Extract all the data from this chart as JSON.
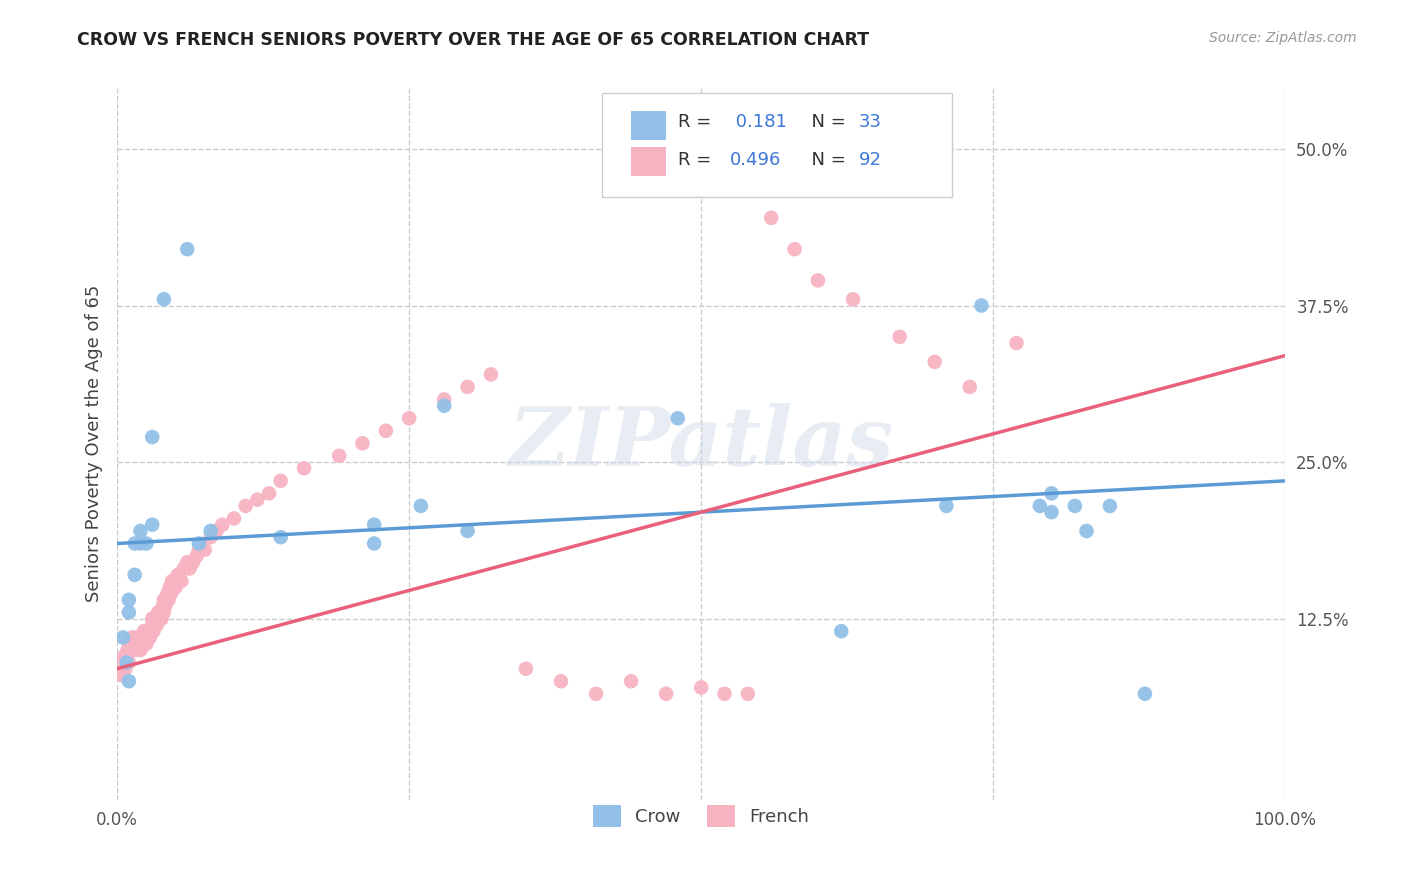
{
  "title": "CROW VS FRENCH SENIORS POVERTY OVER THE AGE OF 65 CORRELATION CHART",
  "source": "Source: ZipAtlas.com",
  "ylabel": "Seniors Poverty Over the Age of 65",
  "xlim": [
    0,
    1.0
  ],
  "ylim": [
    -0.02,
    0.55
  ],
  "xticks": [
    0.0,
    0.25,
    0.5,
    0.75,
    1.0
  ],
  "xticklabels": [
    "0.0%",
    "",
    "",
    "",
    "100.0%"
  ],
  "yticks": [
    0.125,
    0.25,
    0.375,
    0.5
  ],
  "yticklabels": [
    "12.5%",
    "25.0%",
    "37.5%",
    "50.0%"
  ],
  "crow_color": "#92c0e8",
  "french_color": "#f7b3c2",
  "crow_line_color": "#5b9bd5",
  "french_line_color": "#e8607a",
  "crow_R": 0.181,
  "crow_N": 33,
  "french_R": 0.496,
  "french_N": 92,
  "watermark_text": "ZIPatlas",
  "background_color": "#ffffff",
  "grid_color": "#cccccc",
  "legend_number_color": "#3c78d8",
  "crow_scatter_x": [
    0.005,
    0.008,
    0.01,
    0.01,
    0.01,
    0.015,
    0.015,
    0.02,
    0.02,
    0.025,
    0.03,
    0.03,
    0.04,
    0.06,
    0.07,
    0.08,
    0.14,
    0.22,
    0.22,
    0.26,
    0.28,
    0.3,
    0.48,
    0.62,
    0.71,
    0.74,
    0.79,
    0.8,
    0.8,
    0.82,
    0.83,
    0.85,
    0.88
  ],
  "crow_scatter_y": [
    0.11,
    0.09,
    0.14,
    0.13,
    0.075,
    0.16,
    0.185,
    0.195,
    0.185,
    0.185,
    0.2,
    0.27,
    0.38,
    0.42,
    0.185,
    0.195,
    0.19,
    0.2,
    0.185,
    0.215,
    0.295,
    0.195,
    0.285,
    0.115,
    0.215,
    0.375,
    0.215,
    0.225,
    0.21,
    0.215,
    0.195,
    0.215,
    0.065
  ],
  "french_scatter_x": [
    0.003,
    0.005,
    0.006,
    0.007,
    0.008,
    0.009,
    0.01,
    0.01,
    0.01,
    0.012,
    0.013,
    0.014,
    0.015,
    0.016,
    0.017,
    0.018,
    0.019,
    0.02,
    0.02,
    0.021,
    0.022,
    0.023,
    0.024,
    0.025,
    0.025,
    0.027,
    0.028,
    0.029,
    0.03,
    0.03,
    0.031,
    0.032,
    0.033,
    0.034,
    0.035,
    0.036,
    0.037,
    0.038,
    0.039,
    0.04,
    0.04,
    0.041,
    0.042,
    0.043,
    0.044,
    0.045,
    0.046,
    0.047,
    0.048,
    0.05,
    0.051,
    0.052,
    0.055,
    0.057,
    0.06,
    0.062,
    0.065,
    0.068,
    0.07,
    0.075,
    0.08,
    0.085,
    0.09,
    0.1,
    0.11,
    0.12,
    0.13,
    0.14,
    0.16,
    0.19,
    0.21,
    0.23,
    0.25,
    0.28,
    0.3,
    0.32,
    0.35,
    0.38,
    0.41,
    0.44,
    0.47,
    0.5,
    0.52,
    0.54,
    0.56,
    0.58,
    0.6,
    0.63,
    0.67,
    0.7,
    0.73,
    0.77
  ],
  "french_scatter_y": [
    0.08,
    0.09,
    0.095,
    0.085,
    0.095,
    0.1,
    0.09,
    0.1,
    0.105,
    0.1,
    0.11,
    0.105,
    0.1,
    0.105,
    0.11,
    0.105,
    0.1,
    0.1,
    0.11,
    0.105,
    0.105,
    0.115,
    0.11,
    0.105,
    0.115,
    0.115,
    0.11,
    0.115,
    0.12,
    0.125,
    0.115,
    0.12,
    0.125,
    0.12,
    0.13,
    0.125,
    0.13,
    0.125,
    0.135,
    0.13,
    0.14,
    0.135,
    0.14,
    0.145,
    0.14,
    0.15,
    0.145,
    0.155,
    0.15,
    0.15,
    0.155,
    0.16,
    0.155,
    0.165,
    0.17,
    0.165,
    0.17,
    0.175,
    0.18,
    0.18,
    0.19,
    0.195,
    0.2,
    0.205,
    0.215,
    0.22,
    0.225,
    0.235,
    0.245,
    0.255,
    0.265,
    0.275,
    0.285,
    0.3,
    0.31,
    0.32,
    0.085,
    0.075,
    0.065,
    0.075,
    0.065,
    0.07,
    0.065,
    0.065,
    0.445,
    0.42,
    0.395,
    0.38,
    0.35,
    0.33,
    0.31,
    0.345
  ]
}
